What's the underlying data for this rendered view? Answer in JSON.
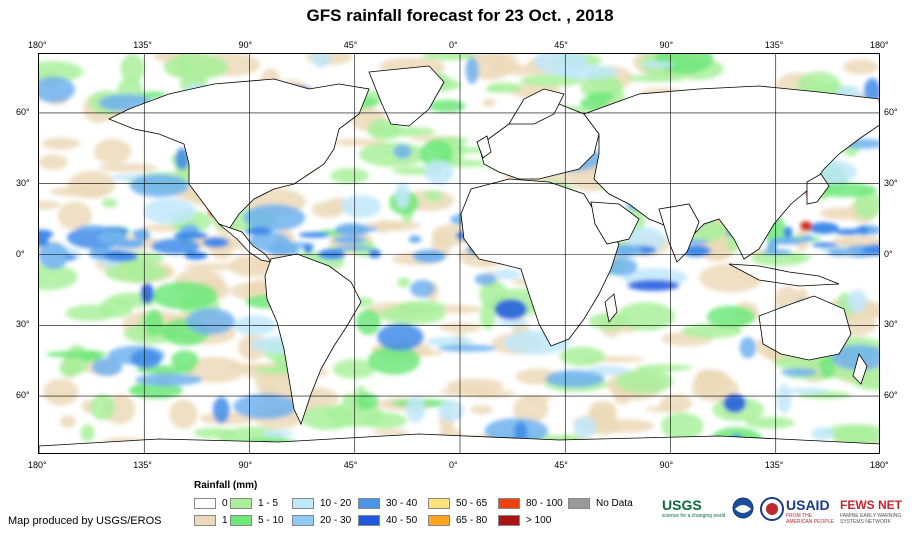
{
  "title": "GFS rainfall forecast for 23 Oct. , 2018",
  "map": {
    "lon_labels": [
      "180°",
      "135°",
      "90°",
      "45°",
      "0°",
      "45°",
      "90°",
      "135°",
      "180°"
    ],
    "lat_labels": [
      "60°",
      "30°",
      "0°",
      "30°",
      "60°"
    ],
    "lat_values": [
      60,
      30,
      0,
      -30,
      -60
    ],
    "lon_range": [
      -180,
      180
    ],
    "lat_range": [
      -85,
      85
    ],
    "graticule_spacing_deg": 45,
    "colors": {
      "land_outline": "#000000",
      "grid": "#000000",
      "tan": "#ecd9b9",
      "light_green": "#a9f09b",
      "green": "#6fe87a",
      "light_blue": "#bfe8fa",
      "blue": "#6fb2ee",
      "mid_blue": "#3f8bea",
      "dark_blue": "#1f57e0",
      "red": "#d22a12"
    }
  },
  "legend": {
    "title": "Rainfall (mm)",
    "items": [
      {
        "label": "0",
        "color": "#ffffff"
      },
      {
        "label": "1",
        "color": "#ecd9b9"
      },
      {
        "label": "1 - 5",
        "color": "#a9f09b"
      },
      {
        "label": "5 - 10",
        "color": "#6fe87a"
      },
      {
        "label": "10 - 20",
        "color": "#bfe8fa"
      },
      {
        "label": "20 - 30",
        "color": "#8fcaf3"
      },
      {
        "label": "30 - 40",
        "color": "#4a95ea"
      },
      {
        "label": "40 - 50",
        "color": "#1f57e0"
      },
      {
        "label": "50 - 65",
        "color": "#ffe27a"
      },
      {
        "label": "65 - 80",
        "color": "#ffa21e"
      },
      {
        "label": "80 - 100",
        "color": "#f0400e"
      },
      {
        "label": "> 100",
        "color": "#a81414"
      },
      {
        "label": "No Data",
        "color": "#999999"
      }
    ]
  },
  "credit": "Map produced by USGS/EROS",
  "logos": [
    {
      "name": "USGS",
      "text": "USGS",
      "sub": "science for a changing world"
    },
    {
      "name": "NOAA",
      "text": ""
    },
    {
      "name": "USAID-seal",
      "text": ""
    },
    {
      "name": "USAID",
      "text": "USAID",
      "sub": "FROM THE AMERICAN PEOPLE"
    },
    {
      "name": "FEWS NET",
      "text": "FEWS NET",
      "sub": "FAMINE EARLY WARNING SYSTEMS NETWORK"
    }
  ]
}
